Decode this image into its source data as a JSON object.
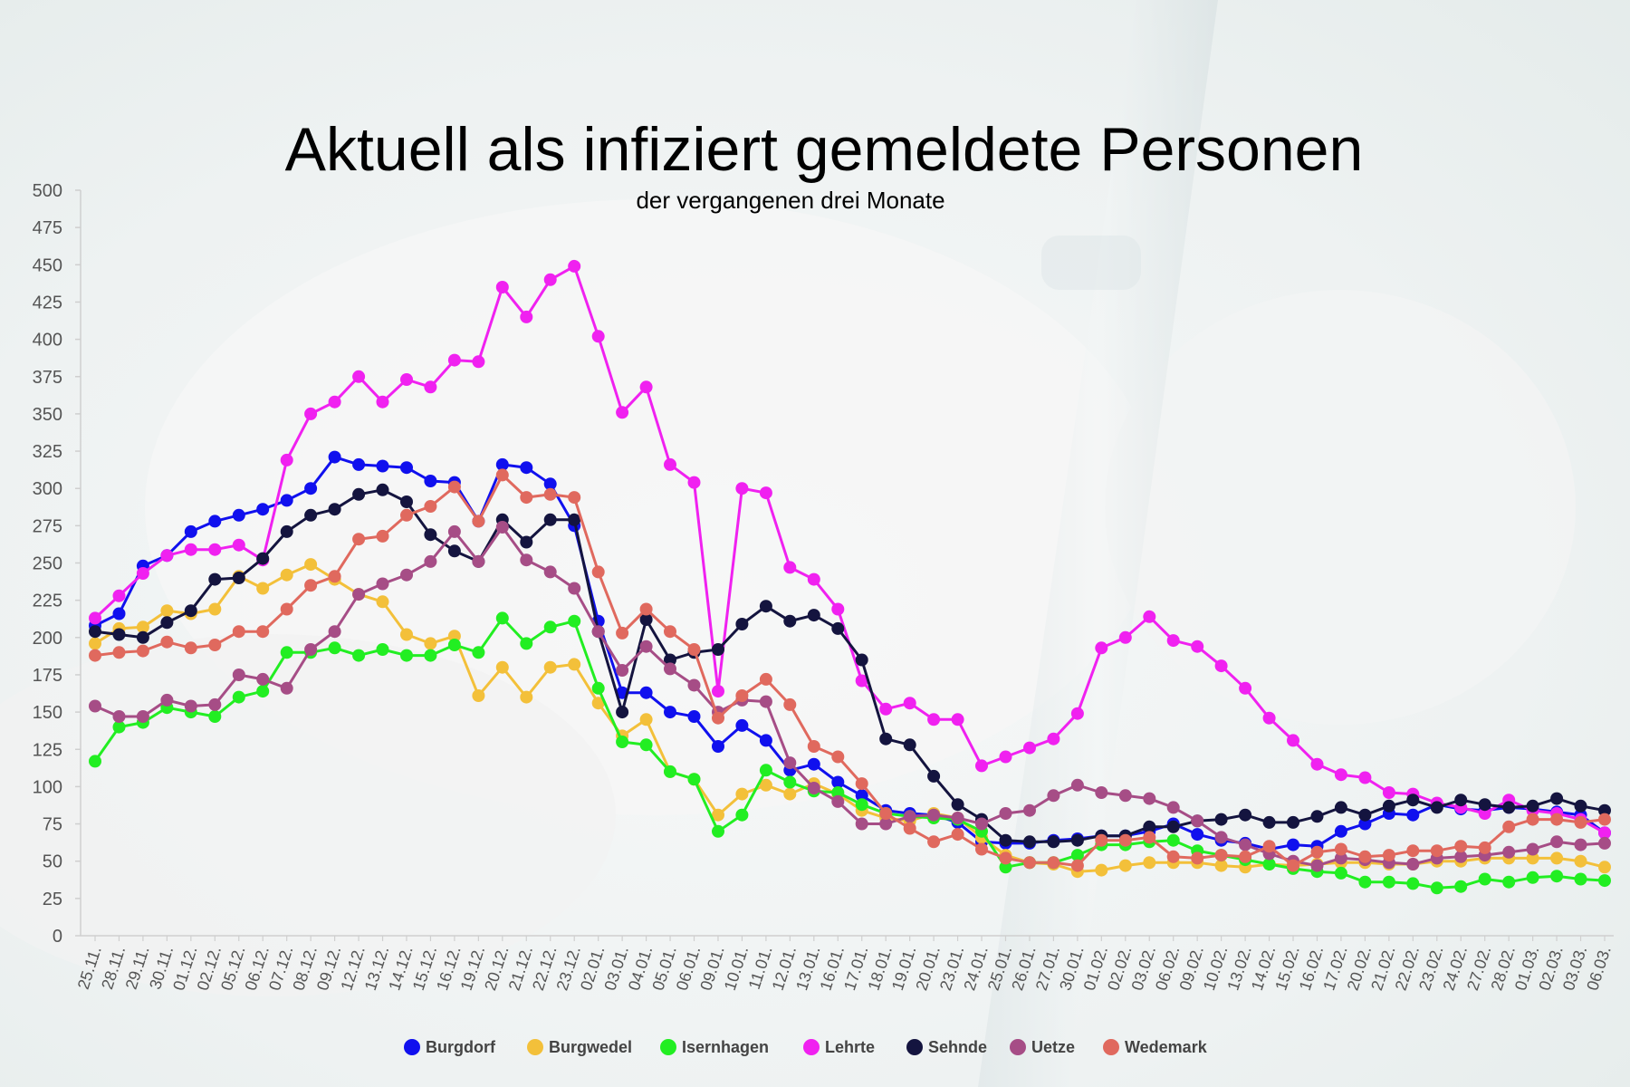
{
  "chart_data": {
    "type": "line",
    "title": "Aktuell als infiziert gemeldete Personen",
    "subtitle": "der vergangenen drei Monate",
    "ylim": [
      0,
      500
    ],
    "yticks": [
      0,
      25,
      50,
      75,
      100,
      125,
      150,
      175,
      200,
      225,
      250,
      275,
      300,
      325,
      350,
      375,
      400,
      425,
      450,
      475,
      500
    ],
    "grid": false,
    "legend_position": "bottom",
    "categories": [
      "25.11.",
      "28.11.",
      "29.11.",
      "30.11.",
      "01.12.",
      "02.12.",
      "05.12.",
      "06.12.",
      "07.12.",
      "08.12.",
      "09.12.",
      "12.12.",
      "13.12.",
      "14.12.",
      "15.12.",
      "16.12.",
      "19.12.",
      "20.12.",
      "21.12.",
      "22.12.",
      "23.12.",
      "02.01.",
      "03.01.",
      "04.01.",
      "05.01.",
      "06.01.",
      "09.01.",
      "10.01.",
      "11.01.",
      "12.01.",
      "13.01.",
      "16.01.",
      "17.01.",
      "18.01.",
      "19.01.",
      "20.01.",
      "23.01.",
      "24.01.",
      "25.01.",
      "26.01.",
      "27.01.",
      "30.01.",
      "01.02.",
      "02.02.",
      "03.02.",
      "06.02.",
      "09.02.",
      "10.02.",
      "13.02.",
      "14.02.",
      "15.02.",
      "16.02.",
      "17.02.",
      "20.02.",
      "21.02.",
      "22.02.",
      "23.02.",
      "24.02.",
      "27.02.",
      "28.02.",
      "01.03.",
      "02.03.",
      "03.03.",
      "06.03."
    ],
    "series": [
      {
        "name": "Burgdorf",
        "color": "#1010ee",
        "values": [
          208,
          216,
          248,
          255,
          271,
          278,
          282,
          286,
          292,
          300,
          321,
          316,
          315,
          314,
          305,
          304,
          278,
          316,
          314,
          303,
          275,
          211,
          163,
          163,
          150,
          147,
          127,
          141,
          131,
          111,
          115,
          103,
          94,
          84,
          82,
          81,
          76,
          63,
          62,
          62,
          64,
          65,
          67,
          67,
          70,
          75,
          68,
          64,
          62,
          58,
          61,
          60,
          70,
          75,
          82,
          81,
          88,
          85,
          84,
          86,
          85,
          83,
          81,
          69
        ]
      },
      {
        "name": "Burgwedel",
        "color": "#f3c03a",
        "values": [
          196,
          206,
          207,
          218,
          216,
          219,
          241,
          233,
          242,
          249,
          239,
          229,
          224,
          202,
          196,
          201,
          161,
          180,
          160,
          180,
          182,
          156,
          134,
          145,
          110,
          105,
          81,
          95,
          101,
          95,
          102,
          95,
          84,
          79,
          77,
          82,
          79,
          66,
          54,
          49,
          48,
          43,
          44,
          47,
          49,
          49,
          49,
          47,
          46,
          48,
          47,
          48,
          49,
          49,
          48,
          48,
          50,
          50,
          52,
          52,
          52,
          52,
          50,
          46
        ]
      },
      {
        "name": "Isernhagen",
        "color": "#22ee22",
        "values": [
          117,
          140,
          143,
          153,
          150,
          147,
          160,
          164,
          190,
          190,
          193,
          188,
          192,
          188,
          188,
          195,
          190,
          213,
          196,
          207,
          211,
          166,
          130,
          128,
          110,
          105,
          70,
          81,
          111,
          103,
          97,
          96,
          88,
          82,
          80,
          79,
          78,
          70,
          46,
          49,
          49,
          54,
          61,
          61,
          63,
          64,
          57,
          54,
          51,
          48,
          45,
          43,
          42,
          36,
          36,
          35,
          32,
          33,
          38,
          36,
          39,
          40,
          38,
          37
        ]
      },
      {
        "name": "Lehrte",
        "color": "#f021f0",
        "values": [
          213,
          228,
          243,
          255,
          259,
          259,
          262,
          252,
          319,
          350,
          358,
          375,
          358,
          373,
          368,
          386,
          385,
          435,
          415,
          440,
          449,
          402,
          351,
          368,
          316,
          304,
          164,
          300,
          297,
          247,
          239,
          219,
          171,
          152,
          156,
          145,
          145,
          114,
          120,
          126,
          132,
          149,
          193,
          200,
          214,
          198,
          194,
          181,
          166,
          146,
          131,
          115,
          108,
          106,
          96,
          95,
          89,
          86,
          82,
          91,
          84,
          82,
          78,
          69
        ]
      },
      {
        "name": "Sehnde",
        "color": "#14143f",
        "values": [
          204,
          202,
          200,
          210,
          218,
          239,
          240,
          253,
          271,
          282,
          286,
          296,
          299,
          291,
          269,
          258,
          251,
          279,
          264,
          279,
          279,
          204,
          150,
          212,
          185,
          190,
          192,
          209,
          221,
          211,
          215,
          206,
          185,
          132,
          128,
          107,
          88,
          78,
          64,
          63,
          63,
          64,
          67,
          67,
          73,
          73,
          77,
          78,
          81,
          76,
          76,
          80,
          86,
          81,
          87,
          91,
          86,
          91,
          88,
          86,
          87,
          92,
          87,
          84
        ]
      },
      {
        "name": "Uetze",
        "color": "#a64d86",
        "values": [
          154,
          147,
          147,
          158,
          154,
          155,
          175,
          172,
          166,
          192,
          204,
          229,
          236,
          242,
          251,
          271,
          251,
          274,
          252,
          244,
          233,
          204,
          178,
          194,
          179,
          168,
          150,
          158,
          157,
          116,
          99,
          90,
          75,
          75,
          80,
          81,
          79,
          75,
          82,
          84,
          94,
          101,
          96,
          94,
          92,
          86,
          77,
          66,
          61,
          55,
          50,
          47,
          52,
          51,
          49,
          48,
          52,
          53,
          54,
          56,
          58,
          63,
          61,
          62
        ]
      },
      {
        "name": "Wedemark",
        "color": "#e0695e",
        "values": [
          188,
          190,
          191,
          197,
          193,
          195,
          204,
          204,
          219,
          235,
          241,
          266,
          268,
          282,
          288,
          301,
          278,
          309,
          294,
          296,
          294,
          244,
          203,
          219,
          204,
          192,
          146,
          161,
          172,
          155,
          127,
          120,
          102,
          82,
          72,
          63,
          68,
          58,
          52,
          49,
          49,
          47,
          64,
          64,
          66,
          53,
          52,
          54,
          53,
          60,
          47,
          56,
          58,
          53,
          54,
          57,
          57,
          60,
          59,
          73,
          78,
          78,
          76,
          78
        ]
      }
    ]
  }
}
